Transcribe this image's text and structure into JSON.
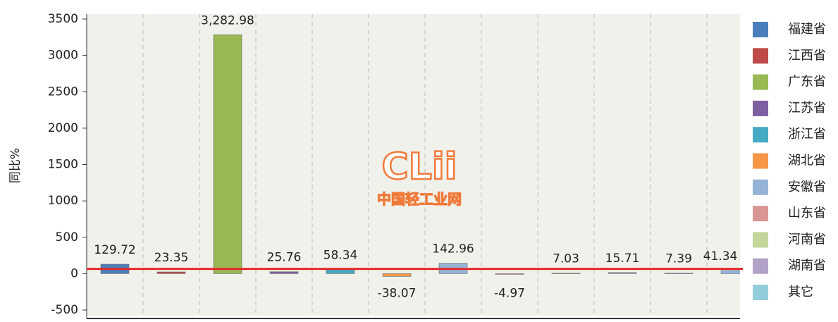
{
  "chart_data": {
    "type": "bar",
    "y_label": "同比%",
    "categories": [
      "福建省",
      "江西省",
      "广东省",
      "江苏省",
      "浙江省",
      "湖北省",
      "安徽省",
      "山东省",
      "河南省",
      "湖南省",
      "其它",
      null
    ],
    "values": [
      129.72,
      23.35,
      3282.98,
      25.76,
      58.34,
      -38.07,
      142.96,
      -4.97,
      7.03,
      15.71,
      7.39,
      41.34
    ],
    "value_labels": [
      "129.72",
      "23.35",
      "3,282.98",
      "25.76",
      "58.34",
      "-38.07",
      "142.96",
      "-4.97",
      "7.03",
      "15.71",
      "7.39",
      "41.34"
    ],
    "colors": [
      "#4a7ebb",
      "#be4b48",
      "#98b954",
      "#7d60a0",
      "#46aac5",
      "#f79646",
      "#95b3d7",
      "#d99694",
      "#c3d69b",
      "#b3a2c7",
      "#93cddd",
      "#8eb4e3"
    ],
    "ylim": [
      -500,
      3500
    ],
    "yticks": [
      -500,
      0,
      500,
      1000,
      1500,
      2000,
      2500,
      3000,
      3500
    ],
    "reference_line": {
      "value": 65,
      "color": "#e32a2a"
    },
    "watermark": [
      "CLii",
      "中国轻工业网"
    ]
  }
}
